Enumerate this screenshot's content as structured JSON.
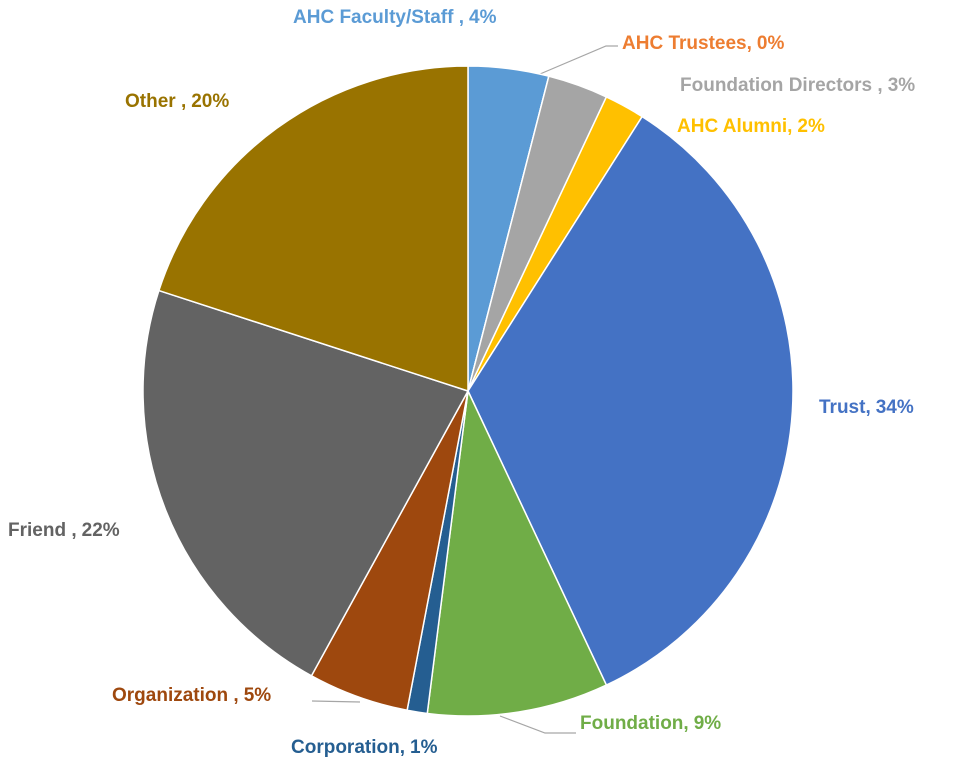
{
  "chart_data": {
    "type": "pie",
    "categories": [
      "AHC Faculty/Staff ,",
      "AHC Trustees,",
      "Foundation Directors ,",
      "AHC Alumni,",
      "Trust,",
      "Foundation,",
      "Corporation,",
      "Organization ,",
      "Friend ,",
      "Other ,"
    ],
    "values": [
      4,
      0,
      3,
      2,
      34,
      9,
      1,
      5,
      22,
      20
    ],
    "value_labels": [
      "4%",
      "0%",
      "3%",
      "2%",
      "34%",
      "9%",
      "1%",
      "5%",
      "22%",
      "20%"
    ],
    "colors": [
      "#5b9bd5",
      "#ed7d31",
      "#a5a5a5",
      "#ffc000",
      "#4472c4",
      "#70ad47",
      "#255e91",
      "#9e480e",
      "#636363",
      "#997300"
    ]
  }
}
